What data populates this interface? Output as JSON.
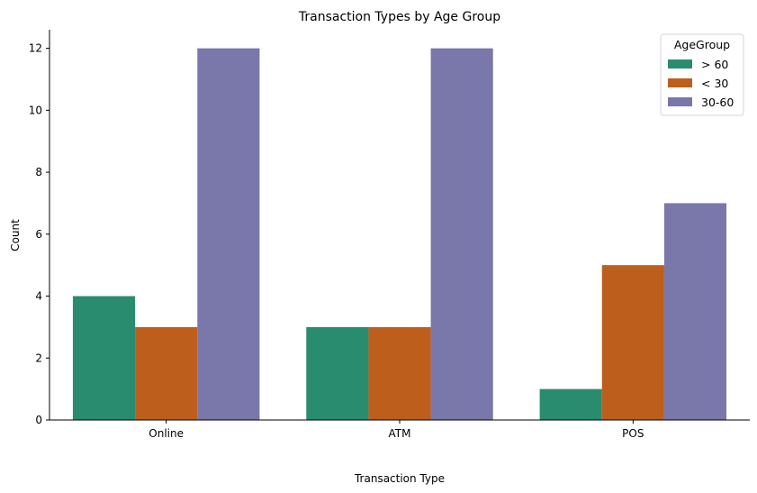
{
  "chart_data": {
    "type": "bar",
    "title": "Transaction Types by Age Group",
    "xlabel": "Transaction Type",
    "ylabel": "Count",
    "categories": [
      "Online",
      "ATM",
      "POS"
    ],
    "series": [
      {
        "name": "> 60",
        "color": "#2a8c6e",
        "values": [
          4,
          3,
          1
        ]
      },
      {
        "name": "< 30",
        "color": "#bd5e1c",
        "values": [
          3,
          3,
          5
        ]
      },
      {
        "name": "30-60",
        "color": "#7a77ab",
        "values": [
          12,
          12,
          7
        ]
      }
    ],
    "ylim": [
      0,
      12.6
    ],
    "yticks": [
      0,
      2,
      4,
      6,
      8,
      10,
      12
    ],
    "legend": {
      "title": "AgeGroup",
      "position": "top-right"
    },
    "grid": false
  }
}
